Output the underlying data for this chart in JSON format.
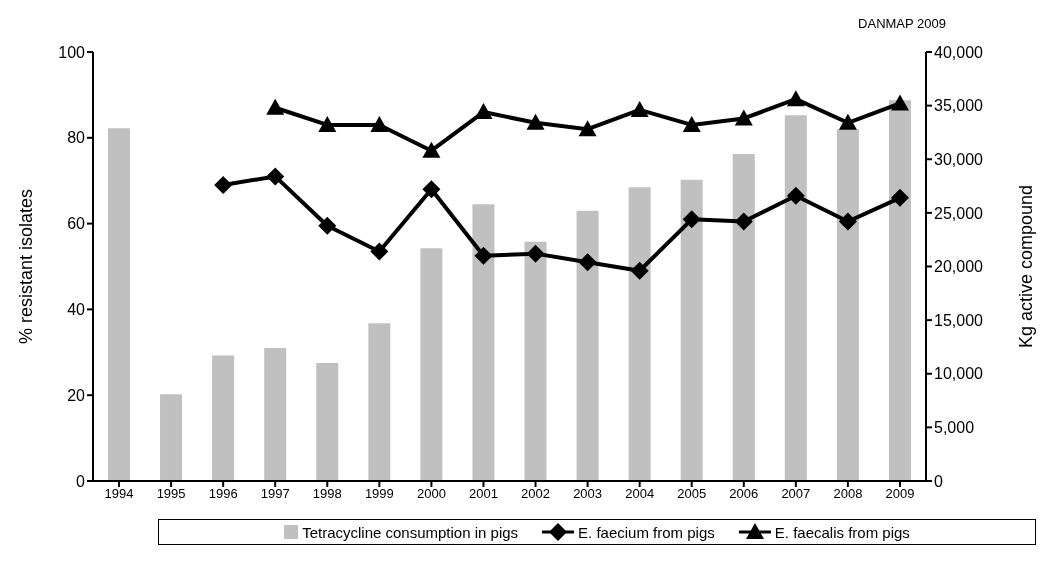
{
  "chart_data": {
    "type": "bar",
    "annotations": [
      "DANMAP 2009"
    ],
    "ylabel": "% resistant isolates",
    "y2label": "Kg active compound",
    "categories": [
      "1994",
      "1995",
      "1996",
      "1997",
      "1998",
      "1999",
      "2000",
      "2001",
      "2002",
      "2003",
      "2004",
      "2005",
      "2006",
      "2007",
      "2008",
      "2009"
    ],
    "series": [
      {
        "name": "Tetracycline consumption in pigs",
        "axis": "y2",
        "color": "#c0c0c0",
        "values": [
          32900,
          8100,
          11700,
          12400,
          11000,
          14700,
          21700,
          25800,
          22300,
          25200,
          27400,
          28100,
          30500,
          34100,
          32800,
          35500
        ]
      },
      {
        "name": "E. faecium from pigs",
        "type": "line",
        "marker": "diamond",
        "color": "#000000",
        "values": [
          null,
          null,
          69,
          71,
          59.5,
          53.5,
          68,
          52.5,
          53,
          51,
          49,
          61,
          60.5,
          66.5,
          60.5,
          66
        ]
      },
      {
        "name": "E. faecalis from pigs",
        "type": "line",
        "marker": "triangle",
        "color": "#000000",
        "values": [
          null,
          null,
          null,
          87,
          83,
          83,
          77,
          86,
          83.5,
          82,
          86.5,
          83,
          84.5,
          89,
          83.5,
          88
        ]
      }
    ],
    "ylim": [
      0,
      100
    ],
    "yticks": [
      0,
      20,
      40,
      60,
      80,
      100
    ],
    "y2lim": [
      0,
      40000
    ],
    "y2ticks": [
      0,
      {
        "value": 5000,
        "label": "5,000"
      },
      {
        "value": 10000,
        "label": "10,000"
      },
      {
        "value": 15000,
        "label": "15,000"
      },
      {
        "value": 20000,
        "label": "20,000"
      },
      {
        "value": 25000,
        "label": "25,000"
      },
      {
        "value": 30000,
        "label": "30,000"
      },
      {
        "value": 35000,
        "label": "35,000"
      },
      {
        "value": 40000,
        "label": "40,000"
      }
    ],
    "grid": false,
    "legend": "bottom"
  }
}
